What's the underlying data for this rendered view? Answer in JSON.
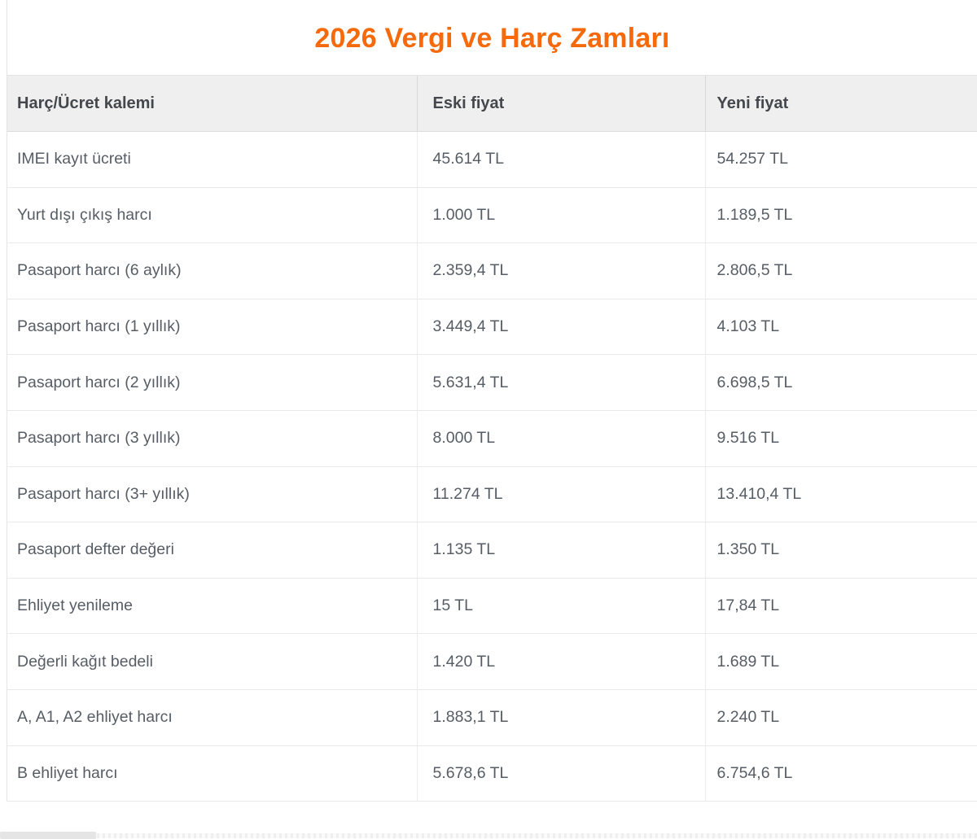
{
  "page": {
    "title": "2026 Vergi ve Harç Zamları",
    "accent_color": "#f66a0b"
  },
  "table": {
    "columns": [
      "Harç/Ücret kalemi",
      "Eski fiyat",
      "Yeni fiyat"
    ],
    "rows": [
      {
        "item": "IMEI kayıt ücreti",
        "old_price": "45.614 TL",
        "new_price": "54.257 TL"
      },
      {
        "item": "Yurt dışı çıkış harcı",
        "old_price": "1.000 TL",
        "new_price": "1.189,5 TL"
      },
      {
        "item": "Pasaport harcı (6 aylık)",
        "old_price": "2.359,4 TL",
        "new_price": "2.806,5 TL"
      },
      {
        "item": "Pasaport harcı (1 yıllık)",
        "old_price": "3.449,4 TL",
        "new_price": "4.103 TL"
      },
      {
        "item": "Pasaport harcı (2 yıllık)",
        "old_price": "5.631,4 TL",
        "new_price": "6.698,5 TL"
      },
      {
        "item": "Pasaport harcı (3 yıllık)",
        "old_price": "8.000 TL",
        "new_price": "9.516 TL"
      },
      {
        "item": "Pasaport harcı (3+ yıllık)",
        "old_price": "11.274 TL",
        "new_price": "13.410,4 TL"
      },
      {
        "item": "Pasaport defter değeri",
        "old_price": "1.135 TL",
        "new_price": "1.350 TL"
      },
      {
        "item": "Ehliyet yenileme",
        "old_price": "15 TL",
        "new_price": "17,84 TL"
      },
      {
        "item": "Değerli kağıt bedeli",
        "old_price": "1.420 TL",
        "new_price": "1.689 TL"
      },
      {
        "item": "A, A1, A2 ehliyet harcı",
        "old_price": "1.883,1 TL",
        "new_price": "2.240 TL"
      },
      {
        "item": "B ehliyet harcı",
        "old_price": "5.678,6 TL",
        "new_price": "6.754,6 TL"
      }
    ]
  }
}
